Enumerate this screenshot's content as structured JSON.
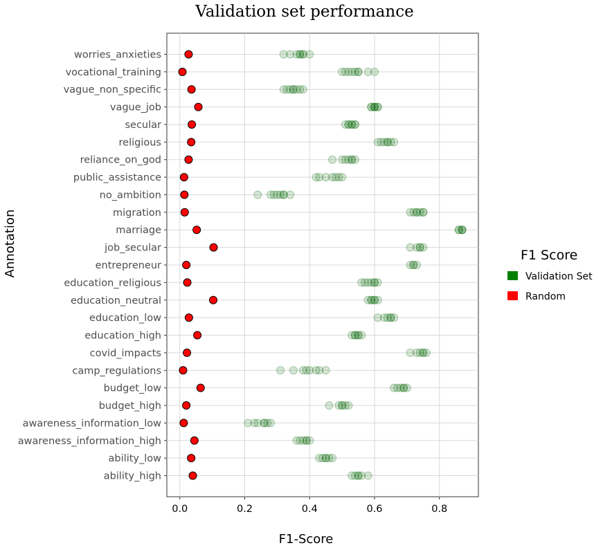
{
  "chart_data": {
    "type": "scatter",
    "title": "Validation set performance",
    "xlabel": "F1-Score",
    "ylabel": "Annotation",
    "xlim": [
      -0.04,
      0.92
    ],
    "xticks": [
      "0.0",
      "0.2",
      "0.4",
      "0.6",
      "0.8"
    ],
    "grid": true,
    "legend": {
      "title": "F1 Score",
      "position": "right",
      "entries": [
        {
          "name": "Validation Set",
          "color": "#008000"
        },
        {
          "name": "Random",
          "color": "#ff0000"
        }
      ]
    },
    "categories": [
      "worries_anxieties",
      "vocational_training",
      "vague_non_specific",
      "vague_job",
      "secular",
      "religious",
      "reliance_on_god",
      "public_assistance",
      "no_ambition",
      "migration",
      "marriage",
      "job_secular",
      "entrepreneur",
      "education_religious",
      "education_neutral",
      "education_low",
      "education_high",
      "covid_impacts",
      "camp_regulations",
      "budget_low",
      "budget_high",
      "awareness_information_low",
      "awareness_information_high",
      "ability_low",
      "ability_high"
    ],
    "series": [
      {
        "name": "Validation Set",
        "color": "#008000",
        "values": [
          [
            0.32,
            0.34,
            0.36,
            0.37,
            0.37,
            0.38,
            0.38,
            0.4
          ],
          [
            0.5,
            0.51,
            0.52,
            0.53,
            0.54,
            0.55,
            0.55,
            0.58,
            0.6
          ],
          [
            0.32,
            0.33,
            0.34,
            0.35,
            0.35,
            0.36,
            0.37,
            0.38
          ],
          [
            0.59,
            0.59,
            0.6,
            0.6,
            0.6,
            0.61,
            0.61
          ],
          [
            0.51,
            0.52,
            0.52,
            0.53,
            0.53,
            0.54,
            0.54
          ],
          [
            0.61,
            0.62,
            0.63,
            0.64,
            0.64,
            0.65,
            0.66
          ],
          [
            0.47,
            0.5,
            0.51,
            0.52,
            0.53,
            0.53,
            0.54
          ],
          [
            0.42,
            0.43,
            0.45,
            0.47,
            0.48,
            0.49,
            0.5
          ],
          [
            0.24,
            0.28,
            0.29,
            0.3,
            0.31,
            0.32,
            0.32,
            0.34
          ],
          [
            0.71,
            0.72,
            0.73,
            0.73,
            0.74,
            0.75,
            0.75
          ],
          [
            0.86,
            0.86,
            0.87,
            0.87,
            0.87
          ],
          [
            0.71,
            0.73,
            0.74,
            0.74,
            0.75
          ],
          [
            0.71,
            0.72,
            0.72,
            0.73
          ],
          [
            0.56,
            0.57,
            0.58,
            0.59,
            0.6,
            0.6,
            0.61
          ],
          [
            0.58,
            0.59,
            0.59,
            0.6,
            0.6,
            0.61
          ],
          [
            0.61,
            0.63,
            0.64,
            0.65,
            0.65,
            0.66
          ],
          [
            0.53,
            0.54,
            0.54,
            0.55,
            0.55,
            0.56
          ],
          [
            0.71,
            0.73,
            0.74,
            0.75,
            0.75,
            0.76
          ],
          [
            0.31,
            0.35,
            0.38,
            0.39,
            0.4,
            0.42,
            0.43,
            0.45
          ],
          [
            0.66,
            0.67,
            0.68,
            0.69,
            0.69,
            0.7
          ],
          [
            0.46,
            0.49,
            0.5,
            0.5,
            0.51,
            0.52
          ],
          [
            0.21,
            0.23,
            0.24,
            0.26,
            0.26,
            0.27,
            0.28
          ],
          [
            0.36,
            0.37,
            0.38,
            0.39,
            0.39,
            0.4
          ],
          [
            0.43,
            0.44,
            0.45,
            0.45,
            0.46,
            0.47
          ],
          [
            0.53,
            0.54,
            0.55,
            0.55,
            0.56,
            0.58
          ]
        ]
      },
      {
        "name": "Random",
        "color": "#ff0000",
        "values": [
          0.027,
          0.008,
          0.036,
          0.057,
          0.037,
          0.035,
          0.027,
          0.013,
          0.014,
          0.015,
          0.052,
          0.104,
          0.02,
          0.023,
          0.103,
          0.028,
          0.054,
          0.022,
          0.01,
          0.064,
          0.02,
          0.012,
          0.045,
          0.035,
          0.04
        ]
      }
    ]
  }
}
